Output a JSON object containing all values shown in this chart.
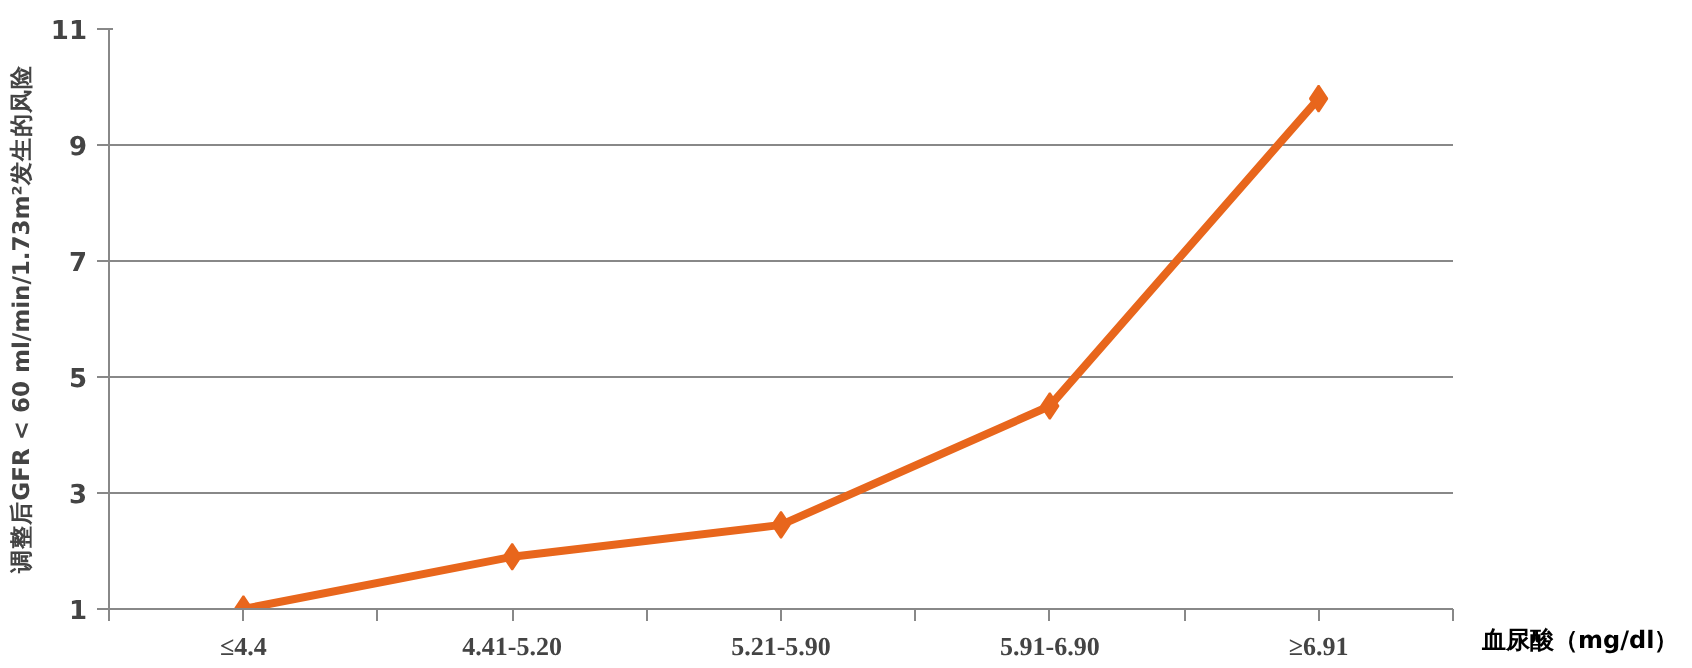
{
  "chart_data": {
    "type": "line",
    "categories": [
      "≤4.4",
      "4.41-5.20",
      "5.21-5.90",
      "5.91-6.90",
      "≥6.91"
    ],
    "series": [
      {
        "color": "#e8661c",
        "values": [
          1.0,
          1.9,
          2.45,
          4.5,
          9.8
        ]
      }
    ],
    "xlabel": "血尿酸（mg/dl）",
    "ylabel": "调整后GFR < 60 ml/min/1.73m²发生的风险",
    "ylim": [
      1,
      11
    ],
    "yticks": [
      1,
      3,
      5,
      7,
      9,
      11
    ],
    "grid": "y",
    "marker": "diamond",
    "line_style": "solid"
  }
}
